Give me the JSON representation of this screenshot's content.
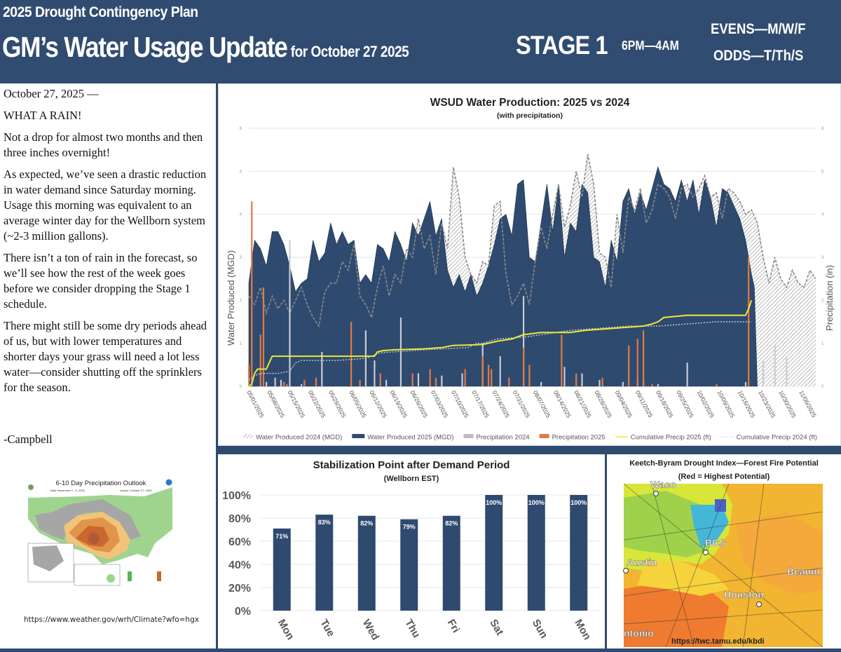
{
  "header": {
    "plan": "2025 Drought Contingency Plan",
    "title": "GM’s Water Usage Update",
    "title_date": "for October 27 2025",
    "stage": "STAGE 1",
    "hours": "6PM—4AM",
    "evens": "EVENS—M/W/F",
    "odds": "ODDS—T/Th/S"
  },
  "letter": {
    "date_line": "October 27, 2025 —",
    "headline": "WHAT A RAIN!",
    "paragraphs": [
      "Not a drop for almost two months and then three inches overnight!",
      "As expected, we’ve seen a drastic reduction in water demand since Saturday morning.  Usage this morning was equivalent to an average winter day for the Wellborn system (~2-3 million gallons).",
      "There isn’t a ton of rain in the forecast, so we’ll see how the rest of the week goes before we consider dropping the Stage 1 schedule.",
      "There might still be some dry periods ahead of us, but with lower temperatures and shorter days your grass will need a lot less water—consider shutting off the sprinklers for the season."
    ],
    "signature": "-Campbell"
  },
  "outlook_map": {
    "title": "6-10 Day Precipitation Outlook",
    "valid": "Valid: November 2 - 6, 2025",
    "issued": "Issued: October 27, 2025",
    "source_url": "https://www.weather.gov/wrh/Climate?wfo=hgx"
  },
  "kbdi_map": {
    "title": "Keetch-Byram Drought Index—Forest Fire Potential",
    "subtitle": "(Red = Highest Potential)",
    "cities": [
      "Waco",
      "BCS",
      "Austin",
      "Beaum",
      "Houston",
      "ntonio"
    ],
    "source_url": "https://twc.tamu.edu/kbdi"
  },
  "colors": {
    "header_bg": "#314c71",
    "navy": "#2f4a6f",
    "precip_2025": "#e07b45",
    "precip_2024": "#c8ccd2",
    "cum_2025": "#e8e83a",
    "cum_2024": "#c9cdd4",
    "hatch": "#8a8a8a"
  },
  "chart_data": [
    {
      "type": "area",
      "title": "WSUD Water Production: 2025 vs 2024",
      "subtitle": "(with precipitation)",
      "ylabel": "Water Produced (MGD)",
      "y2label": "Precipitation (in)",
      "ylim": [
        0,
        6
      ],
      "y2lim": [
        0,
        6
      ],
      "yticks": [
        "0",
        "1",
        "2",
        "3",
        "4",
        "5",
        "6"
      ],
      "grid": true,
      "legend": "bottom",
      "x_ticks": [
        "05/01/2025",
        "05/08/2025",
        "05/15/2025",
        "05/22/2025",
        "05/29/2025",
        "06/05/2025",
        "06/12/2025",
        "06/19/2025",
        "06/26/2025",
        "07/03/2025",
        "07/10/2025",
        "07/17/2025",
        "07/24/2025",
        "07/31/2025",
        "08/07/2025",
        "08/14/2025",
        "08/21/2025",
        "08/28/2025",
        "09/04/2025",
        "09/11/2025",
        "09/18/2025",
        "09/25/2025",
        "10/02/2025",
        "10/09/2025",
        "10/16/2025",
        "10/23/2025",
        "10/30/2025",
        "11/06/2025"
      ],
      "legend_labels": [
        "Water Produced 2024 (MGD)",
        "Water Produced 2025 (MGD)",
        "Precipitation 2024",
        "Precipitation 2025",
        "Cumulative Precip 2025 (ft)",
        "Cumulative Precip 2024 (ft)"
      ],
      "x_days_note": "day index 0 = 05/01",
      "series": [
        {
          "name": "Water Produced 2025 (MGD)",
          "x": [
            0,
            2,
            4,
            6,
            8,
            10,
            12,
            14,
            16,
            18,
            20,
            22,
            24,
            26,
            28,
            30,
            32,
            34,
            36,
            38,
            40,
            42,
            44,
            46,
            48,
            50,
            52,
            54,
            56,
            58,
            60,
            62,
            64,
            66,
            68,
            70,
            72,
            74,
            76,
            78,
            80,
            82,
            84,
            86,
            88,
            90,
            92,
            94,
            96,
            98,
            100,
            102,
            104,
            106,
            108,
            110,
            112,
            114,
            116,
            118,
            120,
            122,
            124,
            126,
            128,
            130,
            132,
            134,
            136,
            138,
            140,
            142,
            144,
            146,
            148,
            150,
            152,
            154,
            156,
            158,
            160,
            162,
            164,
            166,
            168,
            170,
            172,
            173,
            174
          ],
          "values": [
            2.4,
            3.4,
            3.2,
            2.8,
            3.6,
            3.6,
            3.3,
            2.8,
            2.2,
            2.4,
            2.5,
            3.4,
            2.9,
            3.1,
            3.8,
            3.3,
            3.6,
            3.3,
            3.4,
            2.4,
            2.6,
            2.4,
            3.3,
            3.2,
            2.9,
            3.6,
            3.3,
            2.9,
            3.8,
            3.5,
            3.9,
            4.3,
            3.5,
            3.9,
            2.7,
            2.3,
            2.6,
            2.2,
            2.6,
            2.1,
            2.4,
            2.8,
            3.3,
            3.9,
            4.0,
            3.5,
            4.7,
            4.8,
            3.0,
            2.9,
            3.8,
            4.7,
            3.6,
            4.7,
            3.0,
            3.8,
            3.6,
            4.7,
            4.5,
            3.0,
            2.9,
            2.3,
            3.4,
            2.9,
            4.3,
            4.6,
            4.0,
            4.5,
            4.1,
            4.6,
            5.1,
            4.7,
            4.6,
            4.3,
            4.8,
            4.3,
            4.8,
            4.0,
            4.8,
            4.4,
            3.7,
            4.6,
            4.5,
            4.2,
            3.9,
            3.4,
            2.6,
            2.3,
            0
          ]
        },
        {
          "name": "Water Produced 2024 (MGD)",
          "x": [
            0,
            2,
            4,
            6,
            8,
            10,
            12,
            14,
            16,
            18,
            20,
            22,
            24,
            26,
            28,
            30,
            32,
            34,
            36,
            38,
            40,
            42,
            44,
            46,
            48,
            50,
            52,
            54,
            56,
            58,
            60,
            62,
            64,
            66,
            68,
            70,
            72,
            74,
            76,
            78,
            80,
            82,
            84,
            86,
            88,
            90,
            92,
            94,
            96,
            98,
            100,
            102,
            104,
            106,
            108,
            110,
            112,
            114,
            116,
            118,
            120,
            122,
            124,
            126,
            128,
            130,
            132,
            134,
            136,
            138,
            140,
            142,
            144,
            146,
            148,
            150,
            152,
            154,
            156,
            158,
            160,
            162,
            164,
            166,
            168,
            170,
            172,
            174,
            176,
            178,
            180,
            182,
            184,
            186,
            188,
            190,
            192,
            194
          ],
          "values": [
            2.1,
            1.9,
            2.3,
            1.7,
            2.1,
            1.8,
            2.0,
            1.7,
            2.0,
            2.3,
            1.9,
            1.6,
            1.4,
            2.2,
            2.4,
            2.4,
            2.9,
            2.7,
            3.3,
            2.1,
            1.9,
            1.6,
            2.3,
            2.8,
            2.1,
            2.6,
            2.4,
            3.2,
            3.0,
            3.9,
            3.2,
            3.5,
            2.6,
            3.8,
            3.2,
            5.1,
            4.4,
            3.0,
            2.6,
            2.4,
            2.9,
            2.8,
            4.2,
            4.3,
            2.6,
            1.9,
            2.1,
            2.4,
            1.9,
            2.9,
            3.7,
            3.2,
            4.0,
            4.7,
            3.7,
            4.2,
            5.0,
            4.4,
            5.4,
            4.7,
            3.1,
            3.0,
            2.3,
            4.0,
            3.1,
            4.4,
            4.1,
            4.6,
            3.8,
            4.1,
            4.7,
            4.6,
            4.4,
            3.9,
            4.6,
            4.7,
            4.4,
            4.6,
            4.9,
            4.4,
            4.5,
            3.9,
            4.6,
            4.5,
            4.3,
            4.0,
            4.1,
            3.8,
            3.0,
            2.4,
            3.0,
            2.5,
            2.3,
            2.7,
            2.4,
            2.3,
            2.7,
            2.5
          ]
        },
        {
          "name": "Precipitation 2025",
          "x": [
            0,
            1,
            4,
            5,
            12,
            13,
            19,
            23,
            35,
            38,
            45,
            56,
            62,
            64,
            74,
            80,
            82,
            83,
            89,
            94,
            96,
            107,
            112,
            121,
            130,
            133,
            135,
            138,
            160,
            171
          ],
          "values": [
            0.5,
            4.3,
            1.2,
            2.3,
            0.1,
            0.05,
            0.15,
            0.2,
            1.5,
            0.15,
            0.3,
            0.3,
            0.4,
            0.2,
            0.4,
            0.7,
            0.5,
            0.4,
            0.2,
            0.9,
            0.5,
            1.2,
            0.3,
            0.2,
            0.95,
            1.1,
            1.3,
            0.05,
            0.05,
            3.0
          ]
        },
        {
          "name": "Precipitation 2024",
          "x": [
            6,
            9,
            11,
            14,
            18,
            25,
            40,
            43,
            47,
            52,
            58,
            66,
            73,
            80,
            86,
            94,
            100,
            108,
            114,
            120,
            128,
            133,
            135,
            140,
            150,
            170,
            176,
            180,
            184
          ],
          "values": [
            0.1,
            0.2,
            0.15,
            3.4,
            0.05,
            0.8,
            1.3,
            0.6,
            0.15,
            1.6,
            0.3,
            0.25,
            0.3,
            1.0,
            0.7,
            2.1,
            0.1,
            0.45,
            0.3,
            0.15,
            0.1,
            0.1,
            0.15,
            0.05,
            0.55,
            0.1,
            0.6,
            0.95,
            0.7
          ]
        },
        {
          "name": "Cumulative Precip 2025 (ft)",
          "x": [
            0,
            1,
            2,
            3,
            6,
            7,
            8,
            10,
            43,
            44,
            46,
            50,
            60,
            66,
            70,
            80,
            85,
            90,
            94,
            100,
            110,
            115,
            125,
            135,
            138,
            140,
            142,
            150,
            170,
            171,
            172
          ],
          "values": [
            0,
            0.05,
            0.3,
            0.4,
            0.4,
            0.55,
            0.7,
            0.7,
            0.7,
            0.8,
            0.83,
            0.85,
            0.87,
            0.9,
            0.95,
            0.97,
            1.05,
            1.1,
            1.2,
            1.25,
            1.25,
            1.3,
            1.35,
            1.4,
            1.45,
            1.5,
            1.6,
            1.65,
            1.65,
            1.8,
            2.0
          ]
        },
        {
          "name": "Cumulative Precip 2024 (ft)",
          "x": [
            0,
            2,
            4,
            6,
            10,
            14,
            15,
            16,
            18,
            30,
            40,
            42,
            45,
            60,
            75,
            78,
            80,
            85,
            95,
            110,
            120,
            130,
            140,
            150,
            160,
            172
          ],
          "values": [
            0.15,
            0.25,
            0.3,
            0.3,
            0.3,
            0.35,
            0.45,
            0.55,
            0.6,
            0.6,
            0.65,
            0.7,
            0.78,
            0.85,
            0.9,
            1.0,
            1.0,
            1.1,
            1.15,
            1.3,
            1.35,
            1.4,
            1.4,
            1.45,
            1.5,
            1.5
          ]
        }
      ]
    },
    {
      "type": "bar",
      "title": "Stabilization Point after Demand Period",
      "subtitle": "(Wellborn EST)",
      "categories": [
        "Mon",
        "Tue",
        "Wed",
        "Thu",
        "Fri",
        "Sat",
        "Sun",
        "Mon"
      ],
      "values": [
        71,
        83,
        82,
        79,
        82,
        100,
        100,
        100
      ],
      "data_labels": [
        "71%",
        "83%",
        "82%",
        "79%",
        "82%",
        "100%",
        "100%",
        "100%"
      ],
      "yticks": [
        "0%",
        "20%",
        "40%",
        "60%",
        "80%",
        "100%"
      ],
      "ylim": [
        0,
        100
      ],
      "grid": true
    }
  ]
}
